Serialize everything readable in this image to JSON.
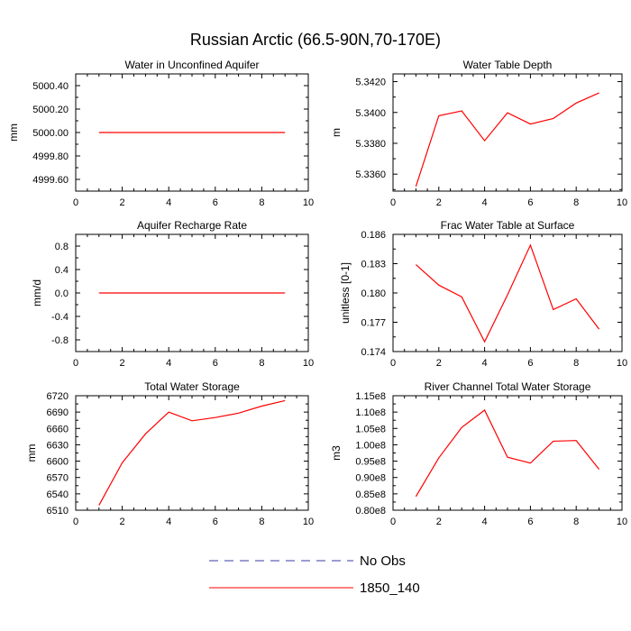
{
  "figure": {
    "title": "Russian Arctic (66.5-90N,70-170E)"
  },
  "legend": [
    {
      "label": "No Obs",
      "color": "#3a3aa8",
      "dash": "dashed"
    },
    {
      "label": "1850_140",
      "color": "#ff0000",
      "dash": "solid"
    }
  ],
  "chart_data": [
    {
      "type": "line",
      "title": "Water in Unconfined Aquifer",
      "xlabel": "",
      "ylabel": "mm",
      "xlim": [
        0,
        10
      ],
      "ylim": [
        4999.5,
        5000.5
      ],
      "xticks": [
        0,
        2,
        4,
        6,
        8,
        10
      ],
      "yticks": [
        4999.6,
        4999.8,
        5000.0,
        5000.2,
        5000.4
      ],
      "ytick_labels": [
        "4999.60",
        "4999.80",
        "5000.00",
        "5000.20",
        "5000.40"
      ],
      "series": [
        {
          "x": [
            1,
            2,
            3,
            4,
            5,
            6,
            7,
            8,
            9
          ],
          "values": [
            5000,
            5000,
            5000,
            5000,
            5000,
            5000,
            5000,
            5000,
            5000
          ],
          "color": "#ff0000"
        }
      ]
    },
    {
      "type": "line",
      "title": "Water Table Depth",
      "xlabel": "",
      "ylabel": "m",
      "xlim": [
        0,
        10
      ],
      "ylim": [
        5.3349,
        5.3425
      ],
      "xticks": [
        0,
        2,
        4,
        6,
        8,
        10
      ],
      "yticks": [
        5.336,
        5.338,
        5.34,
        5.342
      ],
      "ytick_labels": [
        "5.3360",
        "5.3380",
        "5.3400",
        "5.3420"
      ],
      "series": [
        {
          "x": [
            1,
            2,
            3,
            4,
            5,
            6,
            7,
            8,
            9
          ],
          "values": [
            5.3352,
            5.33979,
            5.3401,
            5.33817,
            5.33998,
            5.33925,
            5.33961,
            5.34061,
            5.34127
          ],
          "color": "#ff0000"
        }
      ]
    },
    {
      "type": "line",
      "title": "Aquifer Recharge Rate",
      "xlabel": "",
      "ylabel": "mm/d",
      "xlim": [
        0,
        10
      ],
      "ylim": [
        -1.0,
        1.0
      ],
      "xticks": [
        0,
        2,
        4,
        6,
        8,
        10
      ],
      "yticks": [
        -0.8,
        -0.4,
        0.0,
        0.4,
        0.8
      ],
      "ytick_labels": [
        "-0.8",
        "-0.4",
        "0.0",
        "0.4",
        "0.8"
      ],
      "series": [
        {
          "x": [
            1,
            2,
            3,
            4,
            5,
            6,
            7,
            8,
            9
          ],
          "values": [
            0,
            0,
            0,
            0,
            0,
            0,
            0,
            0,
            0
          ],
          "color": "#ff0000"
        }
      ]
    },
    {
      "type": "line",
      "title": "Frac Water Table at Surface",
      "xlabel": "",
      "ylabel": "unitless [0-1]",
      "xlim": [
        0,
        10
      ],
      "ylim": [
        0.174,
        0.186
      ],
      "xticks": [
        0,
        2,
        4,
        6,
        8,
        10
      ],
      "yticks": [
        0.174,
        0.177,
        0.18,
        0.183,
        0.186
      ],
      "ytick_labels": [
        "0.174",
        "0.177",
        "0.180",
        "0.183",
        "0.186"
      ],
      "series": [
        {
          "x": [
            1,
            2,
            3,
            4,
            5,
            6,
            7,
            8,
            9
          ],
          "values": [
            0.1829,
            0.1808,
            0.1796,
            0.175,
            0.1798,
            0.1849,
            0.1783,
            0.1794,
            0.1763
          ],
          "color": "#ff0000"
        }
      ]
    },
    {
      "type": "line",
      "title": "Total Water Storage",
      "xlabel": "",
      "ylabel": "mm",
      "xlim": [
        0,
        10
      ],
      "ylim": [
        6510,
        6720
      ],
      "xticks": [
        0,
        2,
        4,
        6,
        8,
        10
      ],
      "yticks": [
        6510,
        6540,
        6570,
        6600,
        6630,
        6660,
        6690,
        6720
      ],
      "ytick_labels": [
        "6510",
        "6540",
        "6570",
        "6600",
        "6630",
        "6660",
        "6690",
        "6720"
      ],
      "series": [
        {
          "x": [
            1,
            2,
            3,
            4,
            5,
            6,
            7,
            8,
            9
          ],
          "values": [
            6519,
            6597,
            6650,
            6690,
            6674,
            6680,
            6688,
            6701,
            6711
          ],
          "color": "#ff0000"
        }
      ]
    },
    {
      "type": "line",
      "title": "River Channel Total Water Storage",
      "xlabel": "",
      "ylabel": "m3",
      "xlim": [
        0,
        10
      ],
      "ylim": [
        80000000.0,
        115000000.0
      ],
      "xticks": [
        0,
        2,
        4,
        6,
        8,
        10
      ],
      "yticks": [
        80000000.0,
        85000000.0,
        90000000.0,
        95000000.0,
        100000000.0,
        105000000.0,
        110000000.0,
        115000000.0
      ],
      "ytick_labels": [
        "0.80e8",
        "0.85e8",
        "0.90e8",
        "0.95e8",
        "1.00e8",
        "1.05e8",
        "1.10e8",
        "1.15e8"
      ],
      "series": [
        {
          "x": [
            1,
            2,
            3,
            4,
            5,
            6,
            7,
            8,
            9
          ],
          "values": [
            84200000.0,
            96000000.0,
            105300000.0,
            110600000.0,
            96200000.0,
            94400000.0,
            101100000.0,
            101300000.0,
            92500000.0
          ],
          "color": "#ff0000"
        }
      ]
    }
  ]
}
